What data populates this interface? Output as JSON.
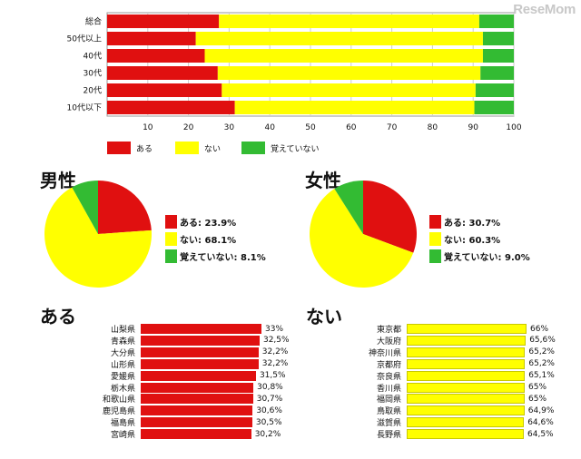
{
  "watermark": "ReseMom",
  "chart_data": [
    {
      "type": "bar",
      "orientation": "horizontal-stacked",
      "categories": [
        "総合",
        "50代以上",
        "40代",
        "30代",
        "20代",
        "10代以下"
      ],
      "series": [
        {
          "name": "ある",
          "color": "#e01010",
          "values": [
            27.5,
            21.8,
            24.0,
            27.2,
            28.2,
            31.4
          ]
        },
        {
          "name": "ない",
          "color": "#ffff00",
          "values": [
            64.0,
            70.6,
            68.4,
            64.6,
            62.4,
            58.9
          ]
        },
        {
          "name": "覚えていない",
          "color": "#33bb33",
          "values": [
            8.5,
            7.6,
            7.6,
            8.2,
            9.4,
            9.7
          ]
        }
      ],
      "xlim": [
        0,
        100
      ],
      "xticks": [
        "10",
        "20",
        "30",
        "40",
        "50",
        "60",
        "70",
        "80",
        "90",
        "100"
      ],
      "grid": true,
      "legend": "bottom"
    },
    {
      "type": "pie",
      "title": "男性",
      "slices": [
        {
          "name": "ある",
          "value": 23.9,
          "label": "ある: 23.9%",
          "color": "#e01010"
        },
        {
          "name": "ない",
          "value": 68.1,
          "label": "ない: 68.1%",
          "color": "#ffff00"
        },
        {
          "name": "覚えていない",
          "value": 8.1,
          "label": "覚えていない: 8.1%",
          "color": "#33bb33"
        }
      ],
      "legend": "right"
    },
    {
      "type": "pie",
      "title": "女性",
      "slices": [
        {
          "name": "ある",
          "value": 30.7,
          "label": "ある: 30.7%",
          "color": "#e01010"
        },
        {
          "name": "ない",
          "value": 60.3,
          "label": "ない: 60.3%",
          "color": "#ffff00"
        },
        {
          "name": "覚えていない",
          "value": 9.0,
          "label": "覚えていない: 9.0%",
          "color": "#33bb33"
        }
      ],
      "legend": "right"
    },
    {
      "type": "bar",
      "orientation": "horizontal",
      "title": "ある",
      "color": "#e01010",
      "categories": [
        "山梨県",
        "青森県",
        "大分県",
        "山形県",
        "愛媛県",
        "栃木県",
        "和歌山県",
        "鹿児島県",
        "福島県",
        "宮崎県"
      ],
      "values": [
        33,
        32.5,
        32.2,
        32.2,
        31.5,
        30.8,
        30.7,
        30.6,
        30.5,
        30.2
      ],
      "labels": [
        "33%",
        "32,5%",
        "32,2%",
        "32,2%",
        "31,5%",
        "30,8%",
        "30,7%",
        "30,6%",
        "30,5%",
        "30,2%"
      ]
    },
    {
      "type": "bar",
      "orientation": "horizontal",
      "title": "ない",
      "color": "#ffff00",
      "categories": [
        "東京都",
        "大阪府",
        "神奈川県",
        "京都府",
        "奈良県",
        "香川県",
        "福岡県",
        "鳥取県",
        "滋賀県",
        "長野県"
      ],
      "values": [
        66,
        65.6,
        65.2,
        65.2,
        65.1,
        65,
        65,
        64.9,
        64.6,
        64.5
      ],
      "labels": [
        "66%",
        "65,6%",
        "65,2%",
        "65,2%",
        "65,1%",
        "65%",
        "65%",
        "64,9%",
        "64,6%",
        "64,5%"
      ]
    }
  ]
}
